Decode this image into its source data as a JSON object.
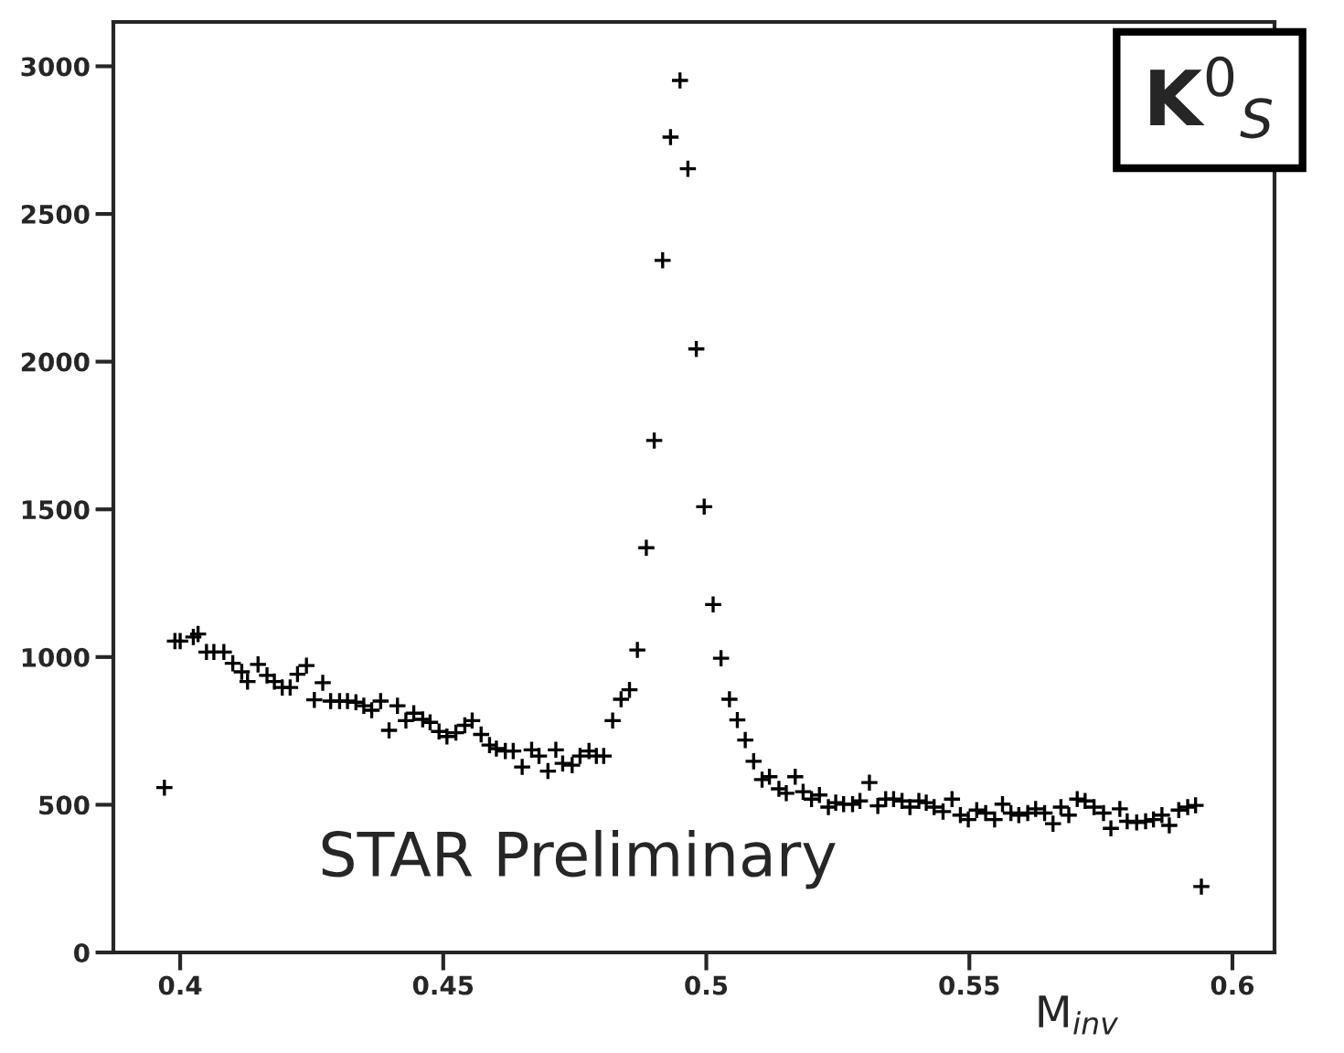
{
  "chart_data": {
    "type": "scatter",
    "xlabel": "M$_{inv}$",
    "x": [
      0.397,
      0.399,
      0.4,
      0.4025,
      0.4034,
      0.405,
      0.4064,
      0.4083,
      0.41,
      0.4117,
      0.4128,
      0.4148,
      0.4165,
      0.4179,
      0.4194,
      0.4209,
      0.4223,
      0.424,
      0.4255,
      0.4271,
      0.4286,
      0.4303,
      0.4318,
      0.4334,
      0.4349,
      0.4364,
      0.4381,
      0.4397,
      0.4413,
      0.4429,
      0.4444,
      0.4461,
      0.4475,
      0.4492,
      0.4507,
      0.4524,
      0.4541,
      0.4555,
      0.4572,
      0.4588,
      0.4601,
      0.4618,
      0.4633,
      0.465,
      0.4668,
      0.4682,
      0.4699,
      0.4714,
      0.4727,
      0.4745,
      0.476,
      0.4777,
      0.4791,
      0.4805,
      0.4822,
      0.4838,
      0.4854,
      0.4869,
      0.4886,
      0.4901,
      0.4917,
      0.4932,
      0.495,
      0.4965,
      0.4981,
      0.4996,
      0.5013,
      0.5028,
      0.5044,
      0.5059,
      0.5074,
      0.509,
      0.5106,
      0.512,
      0.5138,
      0.5152,
      0.5169,
      0.5184,
      0.52,
      0.5215,
      0.5232,
      0.5246,
      0.5261,
      0.5278,
      0.5292,
      0.531,
      0.5326,
      0.5341,
      0.5356,
      0.5372,
      0.5387,
      0.5404,
      0.5418,
      0.5433,
      0.545,
      0.5467,
      0.5483,
      0.5498,
      0.5514,
      0.5531,
      0.5548,
      0.5563,
      0.5579,
      0.5594,
      0.5611,
      0.5626,
      0.5643,
      0.5659,
      0.5674,
      0.5689,
      0.5705,
      0.572,
      0.5737,
      0.5755,
      0.5769,
      0.5786,
      0.58,
      0.5818,
      0.5835,
      0.585,
      0.5866,
      0.588,
      0.5898,
      0.5915,
      0.593,
      0.5941
    ],
    "values": [
      558,
      1054,
      1054,
      1068,
      1078,
      1017,
      1017,
      1017,
      979,
      950,
      917,
      975,
      938,
      917,
      897,
      897,
      942,
      971,
      855,
      913,
      851,
      851,
      851,
      847,
      835,
      820,
      851,
      752,
      835,
      785,
      810,
      789,
      779,
      748,
      731,
      744,
      769,
      785,
      738,
      702,
      690,
      682,
      682,
      628,
      686,
      665,
      614,
      686,
      640,
      634,
      665,
      682,
      665,
      665,
      785,
      857,
      889,
      1024,
      1370,
      1733,
      2343,
      2760,
      2952,
      2653,
      2043,
      1509,
      1178,
      996,
      857,
      787,
      719,
      647,
      585,
      595,
      554,
      539,
      595,
      544,
      519,
      533,
      492,
      507,
      502,
      502,
      513,
      575,
      496,
      519,
      519,
      513,
      492,
      513,
      507,
      492,
      477,
      519,
      465,
      450,
      482,
      472,
      450,
      502,
      472,
      465,
      472,
      486,
      472,
      436,
      492,
      465,
      519,
      513,
      492,
      472,
      420,
      486,
      444,
      440,
      444,
      450,
      465,
      430,
      482,
      492,
      498,
      223
    ],
    "color": "#000000",
    "marker": "cross",
    "xlim": [
      0.3873,
      0.608
    ],
    "ylim": [
      0,
      3150
    ],
    "xticks": [
      0.4,
      0.45,
      0.5,
      0.55,
      0.6
    ],
    "yticks": [
      0,
      500,
      1000,
      1500,
      2000,
      2500,
      3000
    ],
    "grid": false,
    "legend": false,
    "annotations": [
      "STAR Preliminary",
      "K$^{0}$$_{S}$"
    ]
  }
}
